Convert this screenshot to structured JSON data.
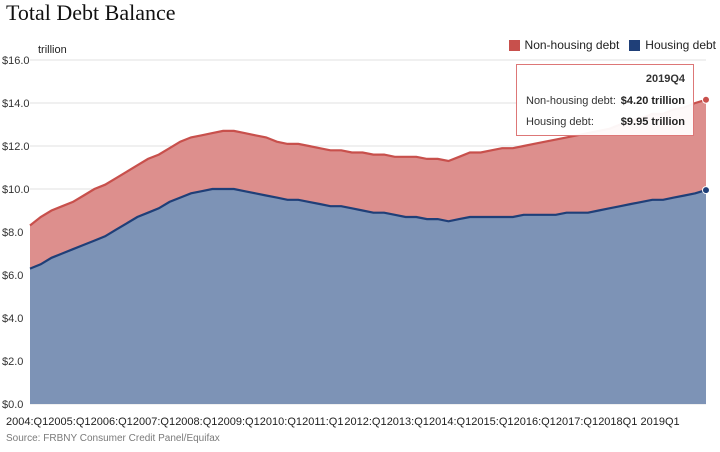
{
  "title": "Total Debt Balance",
  "source": "Source: FRBNY Consumer Credit Panel/Equifax",
  "tooltip": {
    "period": "2019Q4",
    "nonhousing_label": "Non-housing debt:",
    "nonhousing_value": "$4.20 trillion",
    "housing_label": "Housing debt:",
    "housing_value": "$9.95 trillion"
  },
  "chart_data": {
    "type": "area",
    "stacked": true,
    "title": "Total Debt Balance",
    "unit": "trillion",
    "ylim": [
      0,
      16
    ],
    "yticks": [
      "$0.0",
      "$2.0",
      "$4.0",
      "$6.0",
      "$8.0",
      "$10.0",
      "$12.0",
      "$14.0",
      "$16.0"
    ],
    "xticks": [
      "2004:Q1",
      "2005:Q1",
      "2006:Q1",
      "2007:Q1",
      "2008:Q1",
      "2009:Q1",
      "2010:Q1",
      "2011:Q1",
      "2012:Q1",
      "2013:Q1",
      "2014:Q1",
      "2015:Q1",
      "2016:Q1",
      "2017:Q1",
      "2018Q1",
      "2019Q1"
    ],
    "grid": true,
    "legend_position": "top-right",
    "colors": {
      "non_housing": "#c8504c",
      "non_housing_fill": "#dd8f8d",
      "housing": "#1f3f78",
      "housing_fill": "#7d93b6"
    },
    "x": [
      "2004Q1",
      "2004Q2",
      "2004Q3",
      "2004Q4",
      "2005Q1",
      "2005Q2",
      "2005Q3",
      "2005Q4",
      "2006Q1",
      "2006Q2",
      "2006Q3",
      "2006Q4",
      "2007Q1",
      "2007Q2",
      "2007Q3",
      "2007Q4",
      "2008Q1",
      "2008Q2",
      "2008Q3",
      "2008Q4",
      "2009Q1",
      "2009Q2",
      "2009Q3",
      "2009Q4",
      "2010Q1",
      "2010Q2",
      "2010Q3",
      "2010Q4",
      "2011Q1",
      "2011Q2",
      "2011Q3",
      "2011Q4",
      "2012Q1",
      "2012Q2",
      "2012Q3",
      "2012Q4",
      "2013Q1",
      "2013Q2",
      "2013Q3",
      "2013Q4",
      "2014Q1",
      "2014Q2",
      "2014Q3",
      "2014Q4",
      "2015Q1",
      "2015Q2",
      "2015Q3",
      "2015Q4",
      "2016Q1",
      "2016Q2",
      "2016Q3",
      "2016Q4",
      "2017Q1",
      "2017Q2",
      "2017Q3",
      "2017Q4",
      "2018Q1",
      "2018Q2",
      "2018Q3",
      "2018Q4",
      "2019Q1",
      "2019Q2",
      "2019Q3",
      "2019Q4"
    ],
    "series": [
      {
        "name": "Housing debt",
        "values": [
          6.3,
          6.5,
          6.8,
          7.0,
          7.2,
          7.4,
          7.6,
          7.8,
          8.1,
          8.4,
          8.7,
          8.9,
          9.1,
          9.4,
          9.6,
          9.8,
          9.9,
          10.0,
          10.0,
          10.0,
          9.9,
          9.8,
          9.7,
          9.6,
          9.5,
          9.5,
          9.4,
          9.3,
          9.2,
          9.2,
          9.1,
          9.0,
          8.9,
          8.9,
          8.8,
          8.7,
          8.7,
          8.6,
          8.6,
          8.5,
          8.6,
          8.7,
          8.7,
          8.7,
          8.7,
          8.7,
          8.8,
          8.8,
          8.8,
          8.8,
          8.9,
          8.9,
          8.9,
          9.0,
          9.1,
          9.2,
          9.3,
          9.4,
          9.5,
          9.5,
          9.6,
          9.7,
          9.8,
          9.95
        ]
      },
      {
        "name": "Non-housing debt",
        "values": [
          2.0,
          2.2,
          2.2,
          2.2,
          2.2,
          2.3,
          2.4,
          2.4,
          2.4,
          2.4,
          2.4,
          2.5,
          2.5,
          2.5,
          2.6,
          2.6,
          2.6,
          2.6,
          2.7,
          2.7,
          2.7,
          2.7,
          2.7,
          2.6,
          2.6,
          2.6,
          2.6,
          2.6,
          2.6,
          2.6,
          2.6,
          2.7,
          2.7,
          2.7,
          2.7,
          2.8,
          2.8,
          2.8,
          2.8,
          2.8,
          2.9,
          3.0,
          3.0,
          3.1,
          3.2,
          3.2,
          3.2,
          3.3,
          3.4,
          3.5,
          3.5,
          3.6,
          3.7,
          3.7,
          3.7,
          3.8,
          3.9,
          3.9,
          4.0,
          4.0,
          4.1,
          4.1,
          4.2,
          4.2
        ]
      }
    ]
  }
}
